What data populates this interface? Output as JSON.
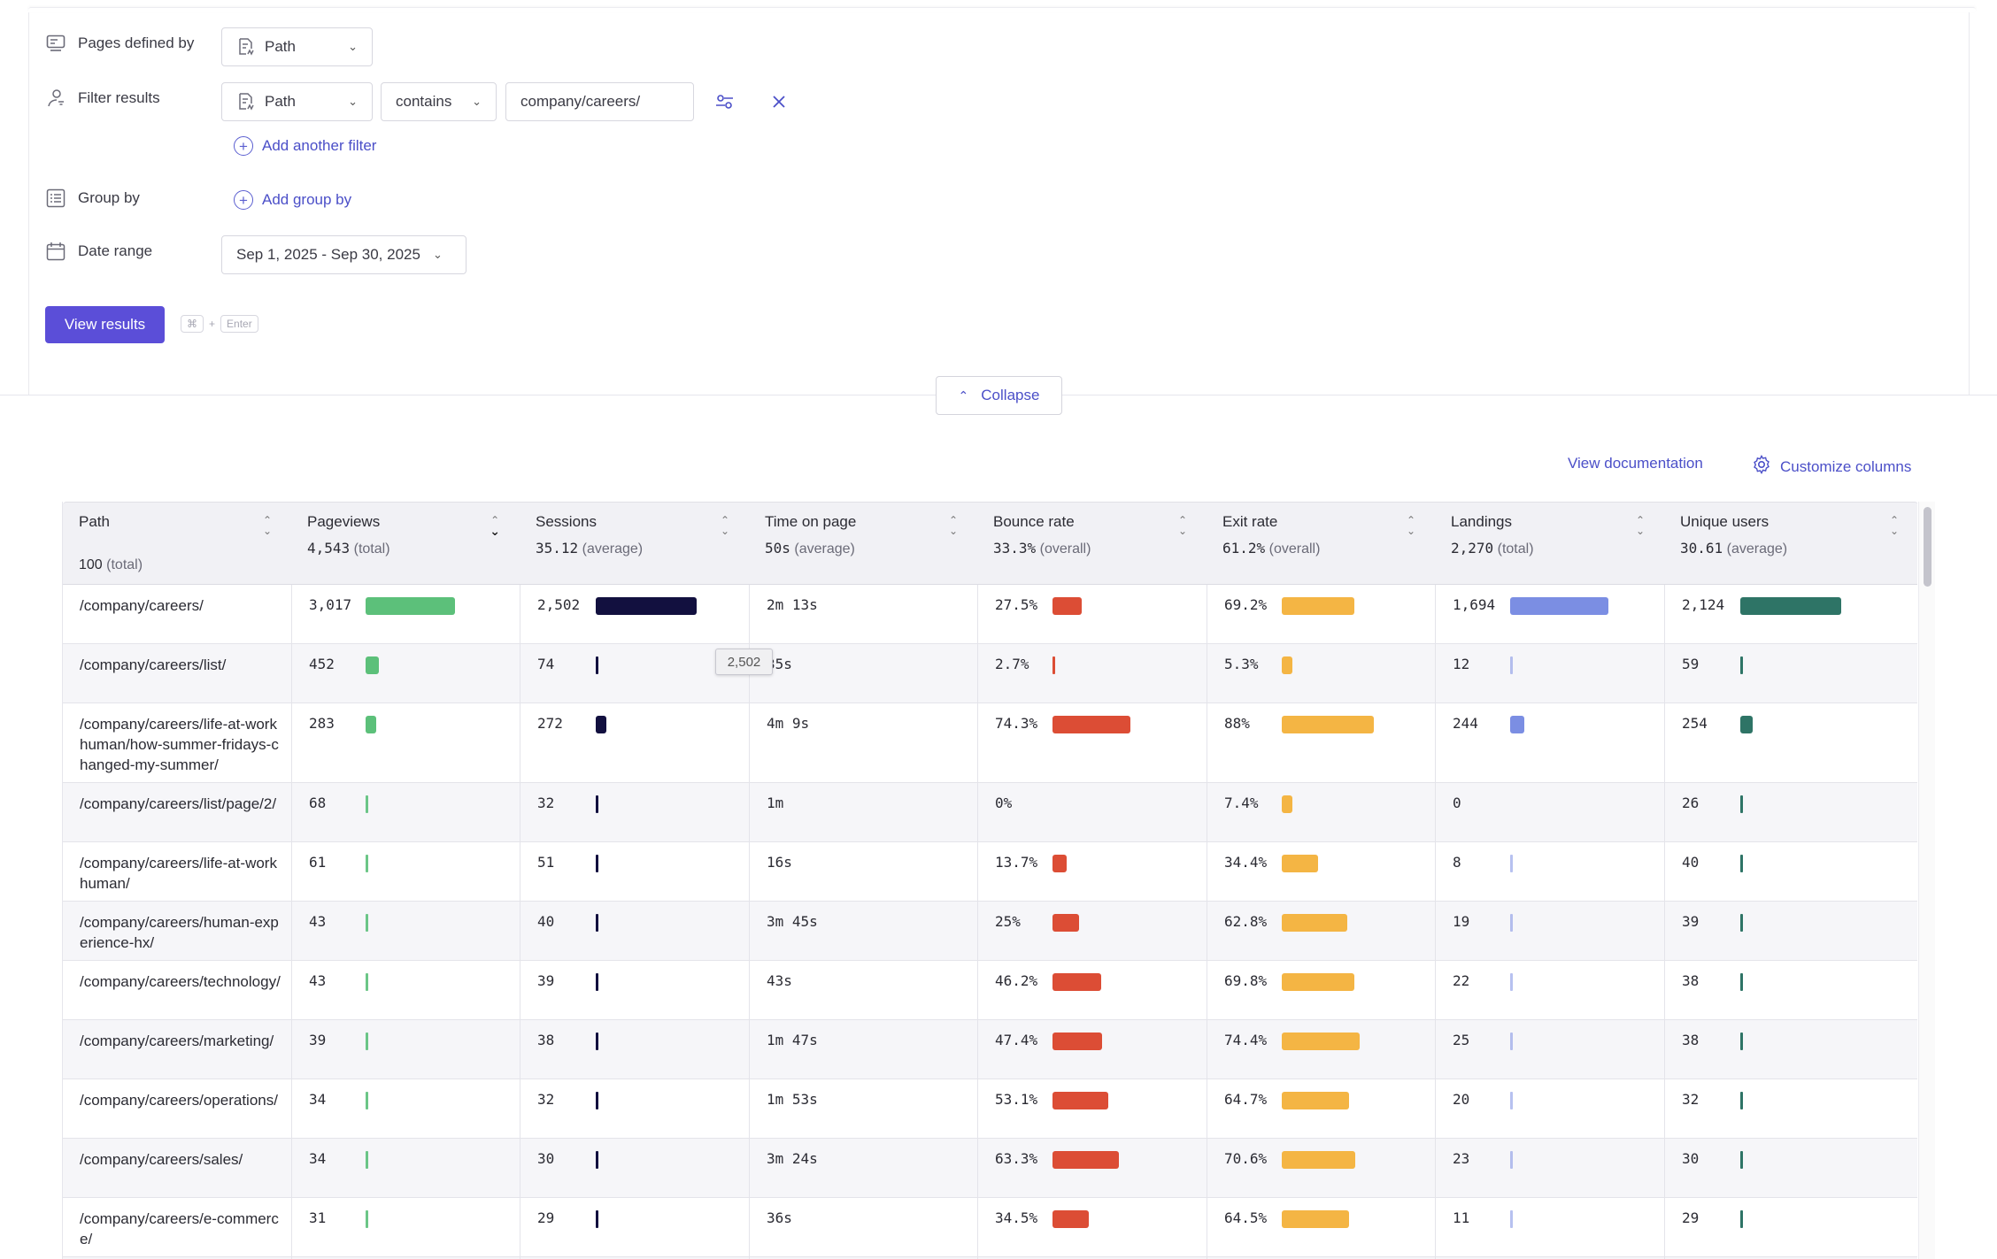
{
  "query": {
    "pages_defined_by": {
      "label": "Pages defined by",
      "value": "Path"
    },
    "filter": {
      "label": "Filter results",
      "field": "Path",
      "operator": "contains",
      "value": "company/careers/"
    },
    "add_filter_label": "Add another filter",
    "group_by": {
      "label": "Group by",
      "add_label": "Add group by"
    },
    "date_range": {
      "label": "Date range",
      "value": "Sep 1, 2025 - Sep 30, 2025"
    },
    "view_results_label": "View results",
    "shortcut": {
      "key1": "⌘",
      "plus": "+",
      "key2": "Enter"
    },
    "collapse_label": "Collapse"
  },
  "toolbar": {
    "documentation_label": "View documentation",
    "customize_label": "Customize columns"
  },
  "columns": [
    {
      "title": "Path",
      "summary_value": "100",
      "summary_suffix": "(total)"
    },
    {
      "title": "Pageviews",
      "summary_value": "4,543",
      "summary_suffix": "(total)"
    },
    {
      "title": "Sessions",
      "summary_value": "35.12",
      "summary_suffix": "(average)"
    },
    {
      "title": "Time on page",
      "summary_value": "50s",
      "summary_suffix": "(average)"
    },
    {
      "title": "Bounce rate",
      "summary_value": "33.3%",
      "summary_suffix": "(overall)"
    },
    {
      "title": "Exit rate",
      "summary_value": "61.2%",
      "summary_suffix": "(overall)"
    },
    {
      "title": "Landings",
      "summary_value": "2,270",
      "summary_suffix": "(total)"
    },
    {
      "title": "Unique users",
      "summary_value": "30.61",
      "summary_suffix": "(average)"
    }
  ],
  "bar_colors": {
    "pageviews": "#5cc07a",
    "sessions": "#12103f",
    "bounce": "#dc4d35",
    "exit": "#f4b544",
    "landings": "#7b8ee3",
    "users": "#2e7466"
  },
  "rows": [
    {
      "path": "/company/careers/",
      "pageviews": "3,017",
      "pageviews_n": 3017,
      "sessions": "2,502",
      "sessions_n": 2502,
      "time": "2m 13s",
      "bounce": "27.5%",
      "bounce_n": 27.5,
      "exit": "69.2%",
      "exit_n": 69.2,
      "landings": "1,694",
      "landings_n": 1694,
      "users": "2,124",
      "users_n": 2124
    },
    {
      "path": "/company/careers/list/",
      "pageviews": "452",
      "pageviews_n": 452,
      "sessions": "74",
      "sessions_n": 74,
      "time": "35s",
      "bounce": "2.7%",
      "bounce_n": 2.7,
      "exit": "5.3%",
      "exit_n": 5.3,
      "landings": "12",
      "landings_n": 12,
      "users": "59",
      "users_n": 59
    },
    {
      "path": "/company/careers/life-at-workhuman/how-summer-fridays-changed-my-summer/",
      "pageviews": "283",
      "pageviews_n": 283,
      "sessions": "272",
      "sessions_n": 272,
      "time": "4m 9s",
      "bounce": "74.3%",
      "bounce_n": 74.3,
      "exit": "88%",
      "exit_n": 88,
      "landings": "244",
      "landings_n": 244,
      "users": "254",
      "users_n": 254
    },
    {
      "path": "/company/careers/list/page/2/",
      "pageviews": "68",
      "pageviews_n": 68,
      "sessions": "32",
      "sessions_n": 32,
      "time": "1m",
      "bounce": "0%",
      "bounce_n": 0,
      "exit": "7.4%",
      "exit_n": 7.4,
      "landings": "0",
      "landings_n": 0,
      "users": "26",
      "users_n": 26
    },
    {
      "path": "/company/careers/life-at-workhuman/",
      "pageviews": "61",
      "pageviews_n": 61,
      "sessions": "51",
      "sessions_n": 51,
      "time": "16s",
      "bounce": "13.7%",
      "bounce_n": 13.7,
      "exit": "34.4%",
      "exit_n": 34.4,
      "landings": "8",
      "landings_n": 8,
      "users": "40",
      "users_n": 40
    },
    {
      "path": "/company/careers/human-experience-hx/",
      "pageviews": "43",
      "pageviews_n": 43,
      "sessions": "40",
      "sessions_n": 40,
      "time": "3m 45s",
      "bounce": "25%",
      "bounce_n": 25,
      "exit": "62.8%",
      "exit_n": 62.8,
      "landings": "19",
      "landings_n": 19,
      "users": "39",
      "users_n": 39
    },
    {
      "path": "/company/careers/technology/",
      "pageviews": "43",
      "pageviews_n": 43,
      "sessions": "39",
      "sessions_n": 39,
      "time": "43s",
      "bounce": "46.2%",
      "bounce_n": 46.2,
      "exit": "69.8%",
      "exit_n": 69.8,
      "landings": "22",
      "landings_n": 22,
      "users": "38",
      "users_n": 38
    },
    {
      "path": "/company/careers/marketing/",
      "pageviews": "39",
      "pageviews_n": 39,
      "sessions": "38",
      "sessions_n": 38,
      "time": "1m 47s",
      "bounce": "47.4%",
      "bounce_n": 47.4,
      "exit": "74.4%",
      "exit_n": 74.4,
      "landings": "25",
      "landings_n": 25,
      "users": "38",
      "users_n": 38
    },
    {
      "path": "/company/careers/operations/",
      "pageviews": "34",
      "pageviews_n": 34,
      "sessions": "32",
      "sessions_n": 32,
      "time": "1m 53s",
      "bounce": "53.1%",
      "bounce_n": 53.1,
      "exit": "64.7%",
      "exit_n": 64.7,
      "landings": "20",
      "landings_n": 20,
      "users": "32",
      "users_n": 32
    },
    {
      "path": "/company/careers/sales/",
      "pageviews": "34",
      "pageviews_n": 34,
      "sessions": "30",
      "sessions_n": 30,
      "time": "3m 24s",
      "bounce": "63.3%",
      "bounce_n": 63.3,
      "exit": "70.6%",
      "exit_n": 70.6,
      "landings": "23",
      "landings_n": 23,
      "users": "30",
      "users_n": 30
    },
    {
      "path": "/company/careers/e-commerce/",
      "pageviews": "31",
      "pageviews_n": 31,
      "sessions": "29",
      "sessions_n": 29,
      "time": "36s",
      "bounce": "34.5%",
      "bounce_n": 34.5,
      "exit": "64.5%",
      "exit_n": 64.5,
      "landings": "11",
      "landings_n": 11,
      "users": "29",
      "users_n": 29
    },
    {
      "path": "",
      "pageviews": "",
      "sessions": "",
      "time": "",
      "bounce": "",
      "exit": "",
      "landings": "",
      "users": ""
    }
  ],
  "tooltip": {
    "value": "2,502"
  }
}
